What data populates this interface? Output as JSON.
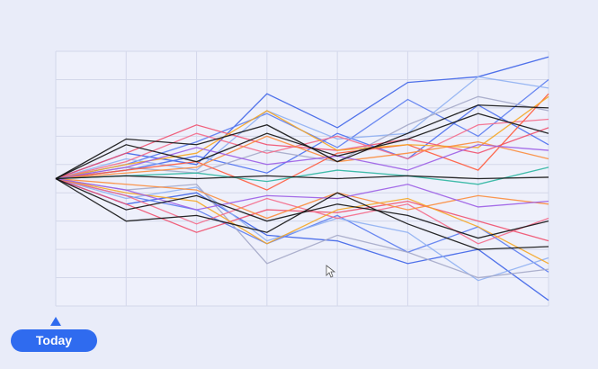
{
  "chart_data": {
    "type": "line",
    "x": [
      0,
      1,
      2,
      3,
      4,
      5,
      6,
      7
    ],
    "xlim": [
      0,
      7
    ],
    "xticks": [
      0,
      1,
      2,
      3,
      4,
      5,
      6,
      7
    ],
    "ylim": [
      -4.5,
      4.5
    ],
    "yticks": [
      -4.5,
      -3.5,
      -2.5,
      -1.5,
      -0.5,
      0.5,
      1.5,
      2.5,
      3.5,
      4.5
    ],
    "grid": true,
    "series": [
      {
        "color": "#3d63e8",
        "values": [
          0,
          0.9,
          0.5,
          3.0,
          1.8,
          3.4,
          3.6,
          4.3
        ]
      },
      {
        "color": "#3d63e8",
        "values": [
          0,
          -0.9,
          -0.5,
          -2.0,
          -2.2,
          -3.0,
          -2.5,
          -4.3
        ]
      },
      {
        "color": "#5b7cf0",
        "values": [
          0,
          0.5,
          1.3,
          2.3,
          1.1,
          2.8,
          1.5,
          3.5
        ]
      },
      {
        "color": "#5b7cf0",
        "values": [
          0,
          -0.6,
          -1.1,
          -2.3,
          -1.3,
          -2.6,
          -1.7,
          -3.3
        ]
      },
      {
        "color": "#4a6ef0",
        "values": [
          0,
          0.3,
          0.8,
          0.2,
          1.6,
          0.7,
          2.6,
          1.2
        ]
      },
      {
        "color": "#8fb0f2",
        "values": [
          0,
          0.7,
          0.3,
          2.4,
          1.4,
          1.6,
          3.6,
          3.2
        ]
      },
      {
        "color": "#8fb0f2",
        "values": [
          0,
          -0.7,
          -0.3,
          -2.2,
          -1.4,
          -1.9,
          -3.6,
          -2.8
        ]
      },
      {
        "color": "#a4a8c8",
        "values": [
          0,
          0.4,
          0.2,
          1.0,
          0.6,
          1.9,
          2.9,
          2.4
        ]
      },
      {
        "color": "#a4a8c8",
        "values": [
          0,
          -0.4,
          -0.2,
          -3.0,
          -2.0,
          -2.6,
          -3.5,
          -3.2
        ]
      },
      {
        "color": "#f0506e",
        "values": [
          0,
          0.9,
          1.9,
          1.2,
          1.0,
          1.4,
          0.9,
          1.8
        ]
      },
      {
        "color": "#f0506e",
        "values": [
          0,
          -0.9,
          -1.9,
          -1.1,
          -1.2,
          -0.8,
          -1.5,
          -2.2
        ]
      },
      {
        "color": "#f46a8a",
        "values": [
          0,
          0.6,
          1.6,
          0.9,
          1.5,
          0.7,
          1.9,
          2.1
        ]
      },
      {
        "color": "#f46a8a",
        "values": [
          0,
          -0.6,
          -1.6,
          -0.7,
          -1.4,
          -0.9,
          -2.3,
          -1.4
        ]
      },
      {
        "color": "#ff5a3c",
        "values": [
          0,
          0.3,
          0.6,
          -0.4,
          0.9,
          1.2,
          0.3,
          3.0
        ]
      },
      {
        "color": "#f5a623",
        "values": [
          0,
          0.5,
          0.9,
          2.4,
          1.0,
          1.2,
          1.1,
          2.9
        ]
      },
      {
        "color": "#f5a623",
        "values": [
          0,
          -0.5,
          -0.8,
          -2.3,
          -1.1,
          -0.7,
          -1.7,
          -3.0
        ]
      },
      {
        "color": "#fb8c3c",
        "values": [
          0,
          0.2,
          0.4,
          1.5,
          0.6,
          0.9,
          1.3,
          0.7
        ]
      },
      {
        "color": "#fb8c3c",
        "values": [
          0,
          -0.2,
          -0.4,
          -1.4,
          -0.5,
          -1.1,
          -0.6,
          -0.9
        ]
      },
      {
        "color": "#9b5de5",
        "values": [
          0,
          0.4,
          1.1,
          0.5,
          0.8,
          0.3,
          1.2,
          1.0
        ]
      },
      {
        "color": "#9b5de5",
        "values": [
          0,
          -0.4,
          -1.1,
          -0.6,
          -0.7,
          -0.2,
          -1.0,
          -0.8
        ]
      },
      {
        "color": "#2bb5a0",
        "values": [
          0,
          0.1,
          0.2,
          -0.1,
          0.3,
          0.1,
          -0.2,
          0.4
        ]
      },
      {
        "color": "#111111",
        "values": [
          0,
          1.4,
          1.2,
          1.9,
          0.6,
          1.6,
          2.6,
          2.5
        ]
      },
      {
        "color": "#111111",
        "values": [
          0,
          -1.5,
          -1.3,
          -1.9,
          -0.5,
          -1.6,
          -2.5,
          -2.4
        ]
      },
      {
        "color": "#111111",
        "values": [
          0,
          1.2,
          0.6,
          1.6,
          0.8,
          1.4,
          2.3,
          1.6
        ]
      },
      {
        "color": "#111111",
        "values": [
          0,
          -1.1,
          -0.6,
          -1.5,
          -0.9,
          -1.3,
          -2.1,
          -1.5
        ]
      },
      {
        "color": "#111111",
        "values": [
          0,
          0.1,
          0,
          0.1,
          0,
          0.1,
          0,
          0.05
        ]
      }
    ]
  },
  "marker": {
    "label": "Today"
  }
}
